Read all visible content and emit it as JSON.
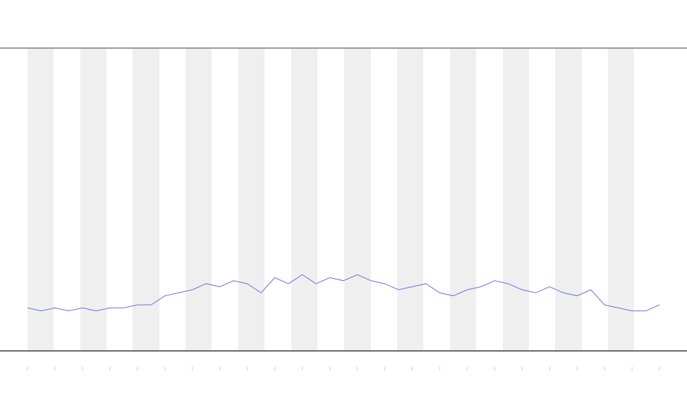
{
  "chart_data": {
    "type": "line",
    "categories": [
      null,
      null,
      null,
      null,
      null,
      null,
      null,
      null,
      null,
      null,
      null,
      null,
      null,
      null,
      null,
      null,
      null,
      null,
      null,
      null,
      null,
      null,
      null,
      null,
      null,
      null,
      null,
      null,
      null,
      null,
      null,
      null,
      null,
      null,
      null,
      null,
      null,
      null,
      null,
      null,
      null,
      null,
      null,
      null,
      null,
      null,
      null
    ],
    "series": [
      {
        "color": "#6b6bdb",
        "values": [
          14,
          13,
          14,
          13,
          14,
          13,
          14,
          14,
          15,
          15,
          18,
          19,
          20,
          22,
          21,
          23,
          22,
          19,
          24,
          22,
          25,
          22,
          24,
          23,
          25,
          23,
          22,
          20,
          21,
          22,
          19,
          18,
          20,
          21,
          23,
          22,
          20,
          19,
          21,
          19,
          18,
          20,
          15,
          14,
          13,
          13,
          15
        ]
      }
    ],
    "ylim": [
      0,
      100
    ]
  }
}
